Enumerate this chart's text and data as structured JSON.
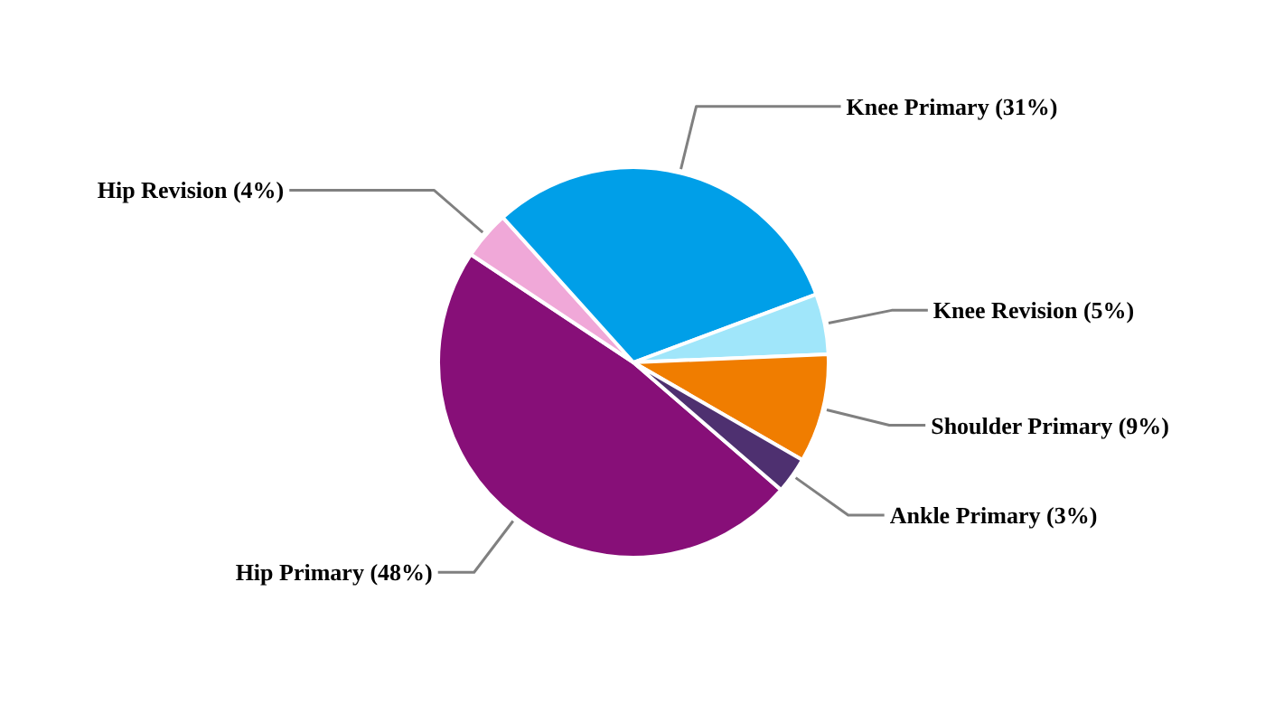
{
  "chart_data": {
    "type": "pie",
    "categories": [
      "Hip Primary",
      "Hip Revision",
      "Knee Primary",
      "Knee Revision",
      "Shoulder Primary",
      "Ankle Primary"
    ],
    "values": [
      48,
      4,
      31,
      5,
      9,
      3
    ],
    "colors": [
      "#870f78",
      "#f0a8d8",
      "#009fe8",
      "#a0e6fa",
      "#f07d00",
      "#4e3070"
    ],
    "value_labels": [
      "(48%)",
      "(4%)",
      "(31%)",
      "(5%)",
      "(9%)",
      "(3%)"
    ]
  }
}
